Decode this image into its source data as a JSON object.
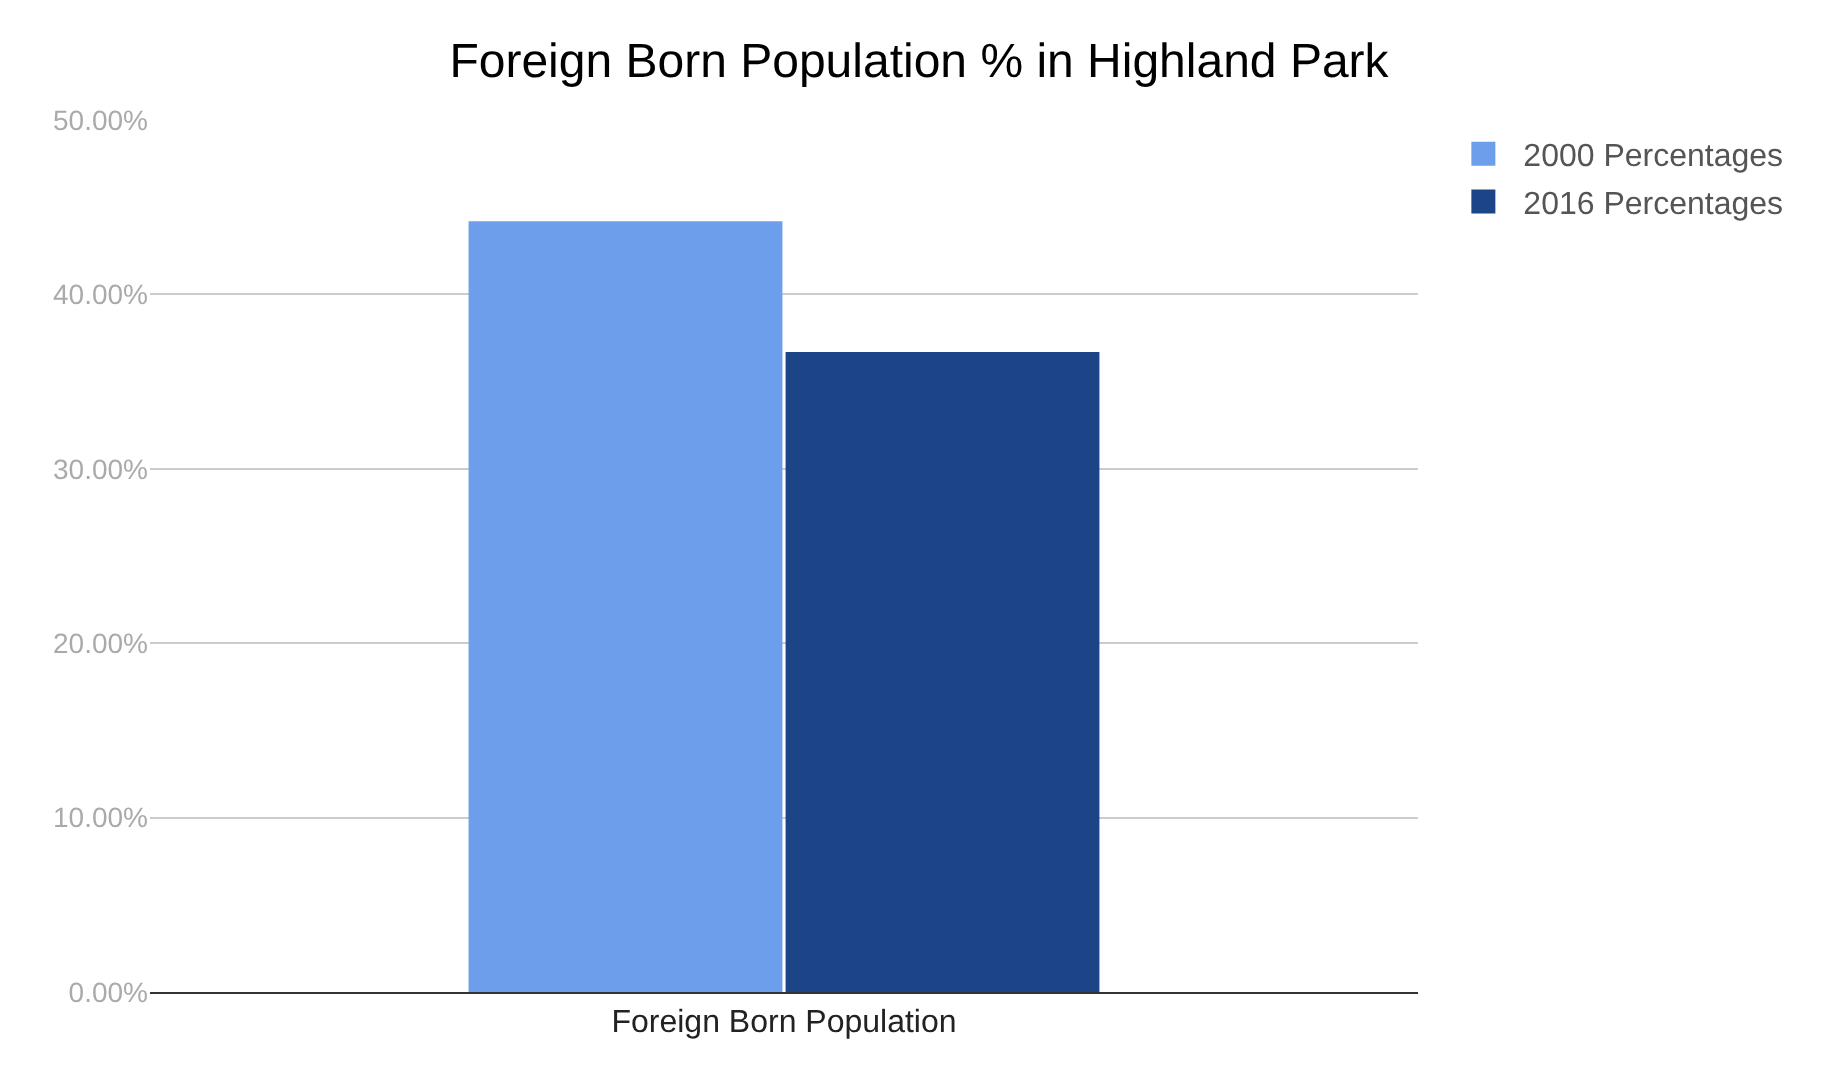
{
  "chart_data": {
    "type": "bar",
    "title": "Foreign Born Population % in Highland Park",
    "categories": [
      "Foreign Born Population"
    ],
    "series": [
      {
        "name": "2000 Percentages",
        "color": "#6d9eeb",
        "values": [
          44.2
        ]
      },
      {
        "name": "2016 Percentages",
        "color": "#1c4587",
        "values": [
          36.7
        ]
      }
    ],
    "ylim": [
      0,
      50
    ],
    "yticks": [
      {
        "value": 0,
        "label": "0.00%"
      },
      {
        "value": 10,
        "label": "10.00%"
      },
      {
        "value": 20,
        "label": "20.00%"
      },
      {
        "value": 30,
        "label": "30.00%"
      },
      {
        "value": 40,
        "label": "40.00%"
      },
      {
        "value": 50,
        "label": "50.00%"
      }
    ],
    "grid": "y",
    "legend": "right"
  }
}
